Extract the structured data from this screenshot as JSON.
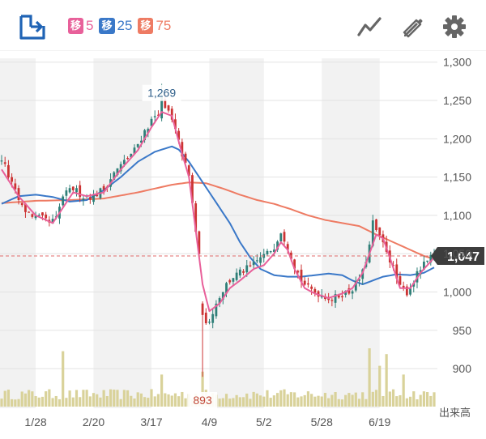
{
  "toolbar": {
    "moving_averages": [
      {
        "tag": "移",
        "period": "5",
        "color": "#e8609a"
      },
      {
        "tag": "移",
        "period": "25",
        "color": "#3a78c8"
      },
      {
        "tag": "移",
        "period": "75",
        "color": "#ee7b63"
      }
    ],
    "icons": [
      "share-icon",
      "chart-type-icon",
      "pencil-icon",
      "gear-icon"
    ]
  },
  "chart_data": {
    "type": "candlestick",
    "ylim": [
      880,
      1305
    ],
    "yticks": [
      900,
      950,
      1000,
      1050,
      1100,
      1150,
      1200,
      1250,
      1300
    ],
    "ytick_labels": [
      "900",
      "950",
      "1,000",
      "1,050",
      "1,100",
      "1,150",
      "1,200",
      "1,250",
      "1,300"
    ],
    "xtick_labels": [
      "1/28",
      "2/20",
      "3/17",
      "4/9",
      "5/2",
      "5/28",
      "6/19"
    ],
    "xtick_index": [
      10,
      27,
      44,
      61,
      77,
      94,
      111
    ],
    "n_sessions": 128,
    "current_price": 1047,
    "current_price_label": "1,047",
    "high_label": "1,269",
    "high_index": 47,
    "low_label": "893",
    "low_index": 59,
    "volume_label": "出来高",
    "colors": {
      "up": "#2f7f78",
      "down": "#cc3333",
      "volume": "#d9d29a",
      "ma5": "#e8609a",
      "ma25": "#3a78c8",
      "ma75": "#ee7b63",
      "price_line": "#e06b6b",
      "price_badge": "#3d3d3d",
      "band": "#f2f2f2"
    },
    "close_anchors": [
      [
        0,
        1175
      ],
      [
        3,
        1140
      ],
      [
        6,
        1110
      ],
      [
        9,
        1100
      ],
      [
        12,
        1095
      ],
      [
        14,
        1090
      ],
      [
        16,
        1095
      ],
      [
        18,
        1125
      ],
      [
        21,
        1135
      ],
      [
        24,
        1125
      ],
      [
        27,
        1125
      ],
      [
        30,
        1135
      ],
      [
        33,
        1155
      ],
      [
        36,
        1170
      ],
      [
        39,
        1185
      ],
      [
        42,
        1210
      ],
      [
        45,
        1230
      ],
      [
        47,
        1240
      ],
      [
        49,
        1235
      ],
      [
        51,
        1210
      ],
      [
        53,
        1180
      ],
      [
        55,
        1150
      ],
      [
        57,
        1080
      ],
      [
        58,
        1045
      ],
      [
        59,
        990
      ],
      [
        60,
        955
      ],
      [
        62,
        975
      ],
      [
        64,
        995
      ],
      [
        66,
        1010
      ],
      [
        68,
        1020
      ],
      [
        70,
        1025
      ],
      [
        72,
        1030
      ],
      [
        74,
        1035
      ],
      [
        76,
        1045
      ],
      [
        78,
        1050
      ],
      [
        80,
        1060
      ],
      [
        82,
        1080
      ],
      [
        84,
        1060
      ],
      [
        86,
        1035
      ],
      [
        88,
        1015
      ],
      [
        90,
        1005
      ],
      [
        92,
        1000
      ],
      [
        95,
        995
      ],
      [
        97,
        990
      ],
      [
        100,
        998
      ],
      [
        102,
        1000
      ],
      [
        104,
        1010
      ],
      [
        106,
        1025
      ],
      [
        108,
        1060
      ],
      [
        109,
        1090
      ],
      [
        111,
        1070
      ],
      [
        113,
        1055
      ],
      [
        115,
        1030
      ],
      [
        117,
        1005
      ],
      [
        119,
        1000
      ],
      [
        121,
        1015
      ],
      [
        123,
        1030
      ],
      [
        125,
        1040
      ],
      [
        127,
        1047
      ]
    ],
    "ma5_anchors": [
      [
        0,
        1160
      ],
      [
        5,
        1125
      ],
      [
        10,
        1100
      ],
      [
        15,
        1090
      ],
      [
        18,
        1110
      ],
      [
        21,
        1130
      ],
      [
        25,
        1125
      ],
      [
        30,
        1130
      ],
      [
        35,
        1160
      ],
      [
        40,
        1185
      ],
      [
        44,
        1215
      ],
      [
        47,
        1235
      ],
      [
        50,
        1230
      ],
      [
        53,
        1180
      ],
      [
        55,
        1150
      ],
      [
        57,
        1080
      ],
      [
        59,
        1010
      ],
      [
        61,
        975
      ],
      [
        64,
        985
      ],
      [
        67,
        1005
      ],
      [
        70,
        1015
      ],
      [
        74,
        1030
      ],
      [
        77,
        1035
      ],
      [
        80,
        1050
      ],
      [
        82,
        1065
      ],
      [
        84,
        1055
      ],
      [
        86,
        1030
      ],
      [
        89,
        1005
      ],
      [
        92,
        998
      ],
      [
        96,
        992
      ],
      [
        100,
        998
      ],
      [
        103,
        1005
      ],
      [
        106,
        1025
      ],
      [
        108,
        1050
      ],
      [
        110,
        1075
      ],
      [
        112,
        1070
      ],
      [
        114,
        1045
      ],
      [
        117,
        1005
      ],
      [
        120,
        1005
      ],
      [
        123,
        1025
      ],
      [
        126,
        1040
      ],
      [
        127,
        1045
      ]
    ],
    "ma25_anchors": [
      [
        0,
        1115
      ],
      [
        5,
        1125
      ],
      [
        10,
        1127
      ],
      [
        15,
        1124
      ],
      [
        20,
        1118
      ],
      [
        25,
        1120
      ],
      [
        30,
        1133
      ],
      [
        35,
        1150
      ],
      [
        40,
        1170
      ],
      [
        45,
        1183
      ],
      [
        50,
        1190
      ],
      [
        52,
        1186
      ],
      [
        55,
        1170
      ],
      [
        58,
        1150
      ],
      [
        61,
        1130
      ],
      [
        64,
        1110
      ],
      [
        67,
        1090
      ],
      [
        70,
        1065
      ],
      [
        73,
        1045
      ],
      [
        76,
        1030
      ],
      [
        80,
        1022
      ],
      [
        84,
        1020
      ],
      [
        88,
        1020
      ],
      [
        92,
        1022
      ],
      [
        96,
        1024
      ],
      [
        100,
        1022
      ],
      [
        103,
        1015
      ],
      [
        106,
        1010
      ],
      [
        109,
        1015
      ],
      [
        112,
        1020
      ],
      [
        116,
        1023
      ],
      [
        120,
        1022
      ],
      [
        124,
        1025
      ],
      [
        127,
        1032
      ]
    ],
    "ma75_anchors": [
      [
        0,
        1116
      ],
      [
        10,
        1119
      ],
      [
        20,
        1120
      ],
      [
        30,
        1122
      ],
      [
        40,
        1130
      ],
      [
        50,
        1140
      ],
      [
        55,
        1143
      ],
      [
        60,
        1142
      ],
      [
        65,
        1135
      ],
      [
        70,
        1127
      ],
      [
        75,
        1120
      ],
      [
        80,
        1115
      ],
      [
        85,
        1108
      ],
      [
        90,
        1100
      ],
      [
        95,
        1094
      ],
      [
        100,
        1090
      ],
      [
        105,
        1086
      ],
      [
        110,
        1075
      ],
      [
        115,
        1065
      ],
      [
        120,
        1055
      ],
      [
        124,
        1047
      ],
      [
        127,
        1043
      ]
    ],
    "volume_spikes": [
      [
        18,
        0.95
      ],
      [
        47,
        0.55
      ],
      [
        59,
        0.6
      ],
      [
        108,
        1.0
      ],
      [
        111,
        0.7
      ],
      [
        113,
        0.9
      ],
      [
        118,
        0.55
      ]
    ]
  }
}
